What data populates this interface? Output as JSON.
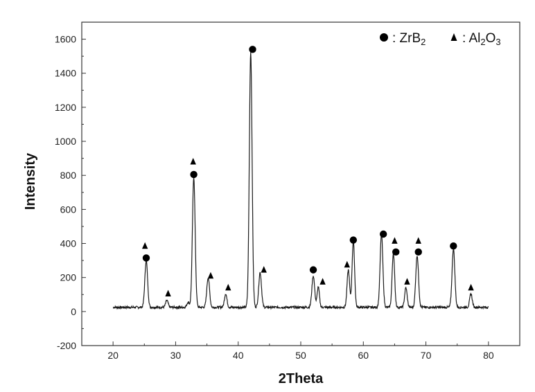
{
  "chart_data": {
    "type": "line",
    "title": "",
    "xlabel": "2Theta",
    "ylabel": "Intensity",
    "xlim": [
      15,
      85
    ],
    "ylim": [
      -200,
      1700
    ],
    "x_ticks": [
      20,
      30,
      40,
      50,
      60,
      70,
      80
    ],
    "y_ticks": [
      -200,
      0,
      200,
      400,
      600,
      800,
      1000,
      1200,
      1400,
      1600
    ],
    "grid": false,
    "baseline": 25,
    "x_range": [
      20,
      80
    ],
    "peaks": [
      {
        "x": 25.3,
        "y": 275,
        "w": 0.22
      },
      {
        "x": 28.6,
        "y": 40,
        "w": 0.2
      },
      {
        "x": 32.0,
        "y": 30,
        "w": 0.2
      },
      {
        "x": 32.9,
        "y": 765,
        "w": 0.22
      },
      {
        "x": 35.2,
        "y": 175,
        "w": 0.22
      },
      {
        "x": 38.0,
        "y": 80,
        "w": 0.2
      },
      {
        "x": 42.0,
        "y": 1500,
        "w": 0.22
      },
      {
        "x": 43.5,
        "y": 205,
        "w": 0.22
      },
      {
        "x": 52.0,
        "y": 185,
        "w": 0.22
      },
      {
        "x": 52.8,
        "y": 120,
        "w": 0.18
      },
      {
        "x": 57.6,
        "y": 220,
        "w": 0.2
      },
      {
        "x": 58.4,
        "y": 390,
        "w": 0.2
      },
      {
        "x": 62.9,
        "y": 430,
        "w": 0.22
      },
      {
        "x": 64.8,
        "y": 320,
        "w": 0.2
      },
      {
        "x": 66.8,
        "y": 115,
        "w": 0.2
      },
      {
        "x": 68.6,
        "y": 305,
        "w": 0.22
      },
      {
        "x": 74.4,
        "y": 345,
        "w": 0.22
      },
      {
        "x": 77.2,
        "y": 80,
        "w": 0.2
      }
    ],
    "markers": {
      "ZrB2": [
        {
          "x": 25.3,
          "y": 315
        },
        {
          "x": 32.9,
          "y": 805
        },
        {
          "x": 42.3,
          "y": 1540
        },
        {
          "x": 52.0,
          "y": 245
        },
        {
          "x": 58.4,
          "y": 420
        },
        {
          "x": 63.2,
          "y": 455
        },
        {
          "x": 65.2,
          "y": 350
        },
        {
          "x": 68.8,
          "y": 350
        },
        {
          "x": 74.4,
          "y": 385
        }
      ],
      "Al2O3": [
        {
          "x": 25.1,
          "y": 385
        },
        {
          "x": 28.8,
          "y": 105
        },
        {
          "x": 32.8,
          "y": 880
        },
        {
          "x": 35.6,
          "y": 210
        },
        {
          "x": 38.4,
          "y": 140
        },
        {
          "x": 44.1,
          "y": 245
        },
        {
          "x": 53.5,
          "y": 175
        },
        {
          "x": 57.4,
          "y": 275
        },
        {
          "x": 65.0,
          "y": 415
        },
        {
          "x": 67.0,
          "y": 175
        },
        {
          "x": 68.8,
          "y": 415
        },
        {
          "x": 77.2,
          "y": 140
        }
      ]
    },
    "legend": {
      "placement": "top-right",
      "entries": [
        {
          "symbol": "circle",
          "label": ": ZrB",
          "subscript": "2"
        },
        {
          "symbol": "triangle",
          "label": ": Al",
          "subscript": "2",
          "label2": "O",
          "subscript2": "3"
        }
      ]
    },
    "colors": {
      "line": "#1a1a1a",
      "marker": "#000000",
      "axis": "#333333"
    }
  }
}
